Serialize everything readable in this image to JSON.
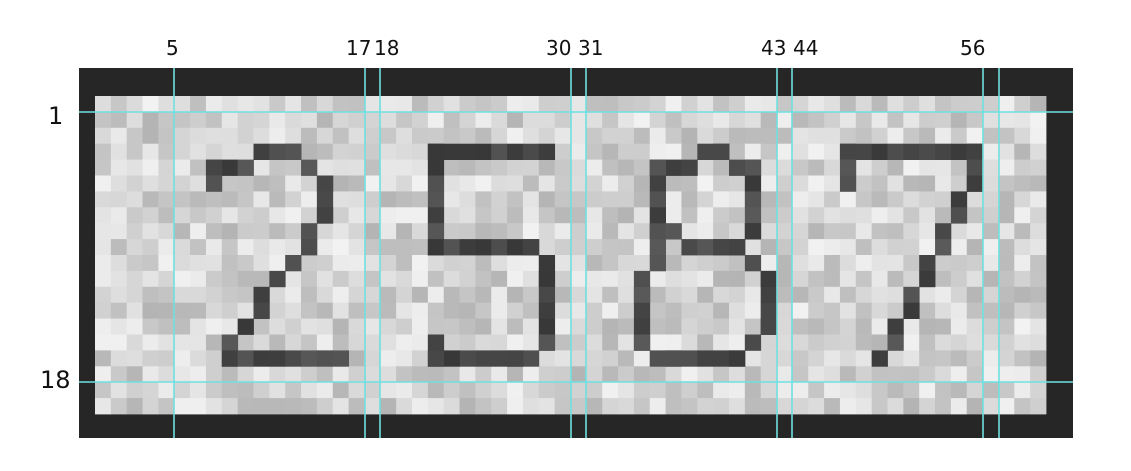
{
  "image": {
    "digits": "2587",
    "grid": {
      "columns": 60,
      "rows": 20
    },
    "colors": {
      "border": "#262626",
      "ink": "#4a4a4a",
      "paper_light": "#ececec",
      "paper_dark": "#bdbdbd",
      "guide": "#6fe0e0"
    }
  },
  "column_marks": [
    "5",
    "17",
    "18",
    "30",
    "31",
    "43",
    "44",
    "56"
  ],
  "row_marks": [
    "1",
    "18"
  ]
}
